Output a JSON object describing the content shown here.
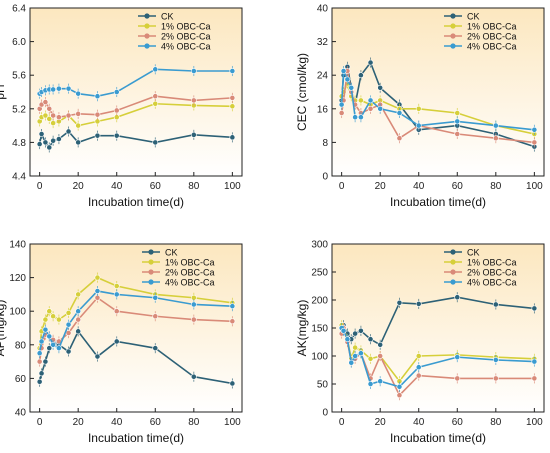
{
  "colors": {
    "CK": "#2d6176",
    "1% OBC-Ca": "#d6cf3a",
    "2% OBC-Ca": "#d98a78",
    "4% OBC-Ca": "#3a9bd0",
    "bg_top": "#fce7bf",
    "bg_bottom": "#ffffff"
  },
  "chart_data": [
    {
      "type": "line",
      "xlabel": "Incubation time(d)",
      "ylabel": "pH",
      "xlim": [
        -5,
        105
      ],
      "ylim": [
        4.4,
        6.4
      ],
      "xticks": [
        "0",
        "20",
        "40",
        "60",
        "80",
        "100"
      ],
      "yticks": [
        "4.4",
        "4.8",
        "5.2",
        "5.6",
        "6.0",
        "6.4"
      ],
      "legend_position": "top-left",
      "x": [
        0,
        1,
        3,
        5,
        7,
        10,
        15,
        20,
        30,
        40,
        60,
        80,
        100
      ],
      "series": [
        {
          "name": "CK",
          "values": [
            4.78,
            4.9,
            4.8,
            4.74,
            4.82,
            4.84,
            4.93,
            4.8,
            4.88,
            4.88,
            4.8,
            4.89,
            4.86
          ]
        },
        {
          "name": "1% OBC-Ca",
          "values": [
            5.05,
            5.1,
            5.12,
            5.08,
            5.03,
            5.05,
            5.12,
            5.0,
            5.05,
            5.1,
            5.26,
            5.24,
            5.23
          ]
        },
        {
          "name": "2% OBC-Ca",
          "values": [
            5.2,
            5.25,
            5.28,
            5.2,
            5.12,
            5.1,
            5.12,
            5.14,
            5.13,
            5.18,
            5.35,
            5.3,
            5.33
          ]
        },
        {
          "name": "4% OBC-Ca",
          "values": [
            5.38,
            5.4,
            5.42,
            5.43,
            5.43,
            5.44,
            5.44,
            5.38,
            5.35,
            5.4,
            5.67,
            5.65,
            5.65
          ]
        }
      ]
    },
    {
      "type": "line",
      "xlabel": "Incubation time(d)",
      "ylabel": "CEC (cmol/kg)",
      "xlim": [
        -5,
        105
      ],
      "ylim": [
        0,
        40
      ],
      "xticks": [
        "0",
        "20",
        "40",
        "60",
        "80",
        "100"
      ],
      "yticks": [
        "0",
        "8",
        "16",
        "24",
        "32",
        "40"
      ],
      "legend_position": "top-right",
      "x": [
        0,
        1,
        3,
        5,
        7,
        10,
        15,
        20,
        30,
        40,
        60,
        80,
        100
      ],
      "series": [
        {
          "name": "CK",
          "values": [
            18,
            24,
            26,
            21,
            17,
            24,
            27,
            21,
            17,
            11,
            12,
            10,
            7
          ]
        },
        {
          "name": "1% OBC-Ca",
          "values": [
            19,
            20,
            22,
            19,
            18,
            18,
            17,
            18,
            16,
            16,
            15,
            12,
            10
          ]
        },
        {
          "name": "2% OBC-Ca",
          "values": [
            15,
            18,
            25,
            20,
            17,
            15,
            16,
            17,
            9,
            12,
            10,
            9,
            8
          ]
        },
        {
          "name": "4% OBC-Ca",
          "values": [
            17,
            25,
            23,
            21,
            14,
            14,
            18,
            16,
            15,
            12,
            13,
            12,
            11
          ]
        }
      ]
    },
    {
      "type": "line",
      "xlabel": "Incubation time(d)",
      "ylabel": "AP(mg/kg)",
      "xlim": [
        -5,
        105
      ],
      "ylim": [
        40,
        140
      ],
      "xticks": [
        "0",
        "20",
        "40",
        "60",
        "80",
        "100"
      ],
      "yticks": [
        "40",
        "60",
        "80",
        "100",
        "120",
        "140"
      ],
      "legend_position": "top-right",
      "x": [
        0,
        1,
        3,
        5,
        7,
        10,
        15,
        20,
        30,
        40,
        60,
        80,
        100
      ],
      "series": [
        {
          "name": "CK",
          "values": [
            58,
            63,
            70,
            78,
            82,
            80,
            76,
            88,
            73,
            82,
            78,
            61,
            57
          ]
        },
        {
          "name": "1% OBC-Ca",
          "values": [
            78,
            88,
            95,
            100,
            97,
            95,
            99,
            110,
            120,
            115,
            110,
            108,
            105
          ]
        },
        {
          "name": "2% OBC-Ca",
          "values": [
            70,
            78,
            86,
            85,
            83,
            82,
            87,
            95,
            108,
            100,
            97,
            95,
            94
          ]
        },
        {
          "name": "4% OBC-Ca",
          "values": [
            75,
            82,
            89,
            85,
            80,
            78,
            92,
            100,
            112,
            110,
            108,
            104,
            103
          ]
        }
      ]
    },
    {
      "type": "line",
      "xlabel": "Incubation time(d)",
      "ylabel": "AK(mg/kg)",
      "xlim": [
        -5,
        105
      ],
      "ylim": [
        0,
        300
      ],
      "xticks": [
        "0",
        "20",
        "40",
        "60",
        "80",
        "100"
      ],
      "yticks": [
        "0",
        "50",
        "100",
        "150",
        "200",
        "250",
        "300"
      ],
      "legend_position": "top-right",
      "x": [
        0,
        1,
        3,
        5,
        7,
        10,
        15,
        20,
        30,
        40,
        60,
        80,
        100
      ],
      "series": [
        {
          "name": "CK",
          "values": [
            150,
            155,
            140,
            130,
            140,
            145,
            130,
            120,
            195,
            193,
            205,
            192,
            185
          ]
        },
        {
          "name": "1% OBC-Ca",
          "values": [
            155,
            150,
            130,
            95,
            115,
            110,
            95,
            100,
            55,
            100,
            102,
            98,
            95
          ]
        },
        {
          "name": "2% OBC-Ca",
          "values": [
            140,
            150,
            125,
            90,
            95,
            105,
            60,
            100,
            30,
            65,
            60,
            60,
            60
          ]
        },
        {
          "name": "4% OBC-Ca",
          "values": [
            150,
            145,
            130,
            88,
            100,
            105,
            50,
            55,
            45,
            80,
            98,
            93,
            90
          ]
        }
      ]
    }
  ]
}
